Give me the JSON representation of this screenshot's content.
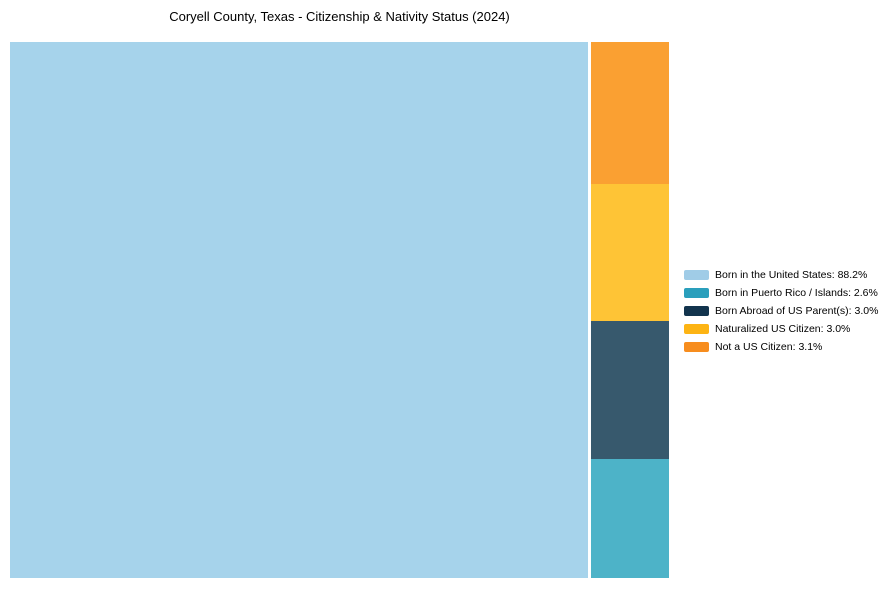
{
  "chart_data": {
    "type": "treemap",
    "title": "Coryell County, Texas - Citizenship & Nativity Status (2024)",
    "legend_position": "right",
    "background_color": "#ffffff",
    "text_color": "#000000",
    "segments": [
      {
        "label": "Born in the United States",
        "value": 88.2,
        "legend_text": "Born in the United States: 88.2%",
        "block_color": "#a6d3eb",
        "legend_color": "#a0cce7"
      },
      {
        "label": "Born in Puerto Rico / Islands",
        "value": 2.6,
        "legend_text": "Born in Puerto Rico / Islands: 2.6%",
        "block_color": "#4db3c8",
        "legend_color": "#2a9fbc"
      },
      {
        "label": "Born Abroad of US Parent(s)",
        "value": 3.0,
        "legend_text": "Born Abroad of US Parent(s): 3.0%",
        "block_color": "#37596d",
        "legend_color": "#12344d"
      },
      {
        "label": "Naturalized US Citizen",
        "value": 3.0,
        "legend_text": "Naturalized US Citizen: 3.0%",
        "block_color": "#fec436",
        "legend_color": "#fdb414"
      },
      {
        "label": "Not a US Citizen",
        "value": 3.1,
        "legend_text": "Not a US Citizen: 3.1%",
        "block_color": "#faa032",
        "legend_color": "#f78d1e"
      }
    ]
  }
}
